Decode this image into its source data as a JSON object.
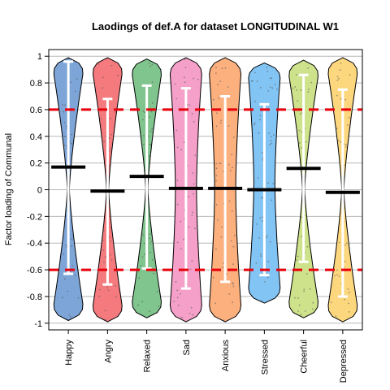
{
  "chart_data": {
    "type": "violin",
    "title": "Laodings of def.A for dataset LONGITUDINAL W1",
    "xlabel": "",
    "ylabel": "Factor loading of Communal",
    "ylim": [
      -1.05,
      1.05
    ],
    "yticks": [
      -1,
      -0.8,
      -0.6,
      -0.4,
      -0.2,
      0,
      0.2,
      0.4,
      0.6,
      0.8,
      1
    ],
    "ytick_labels": [
      "-1",
      "-0.8",
      "-0.6",
      "-0.4",
      "-0.2",
      "0",
      "0.2",
      "0.4",
      "0.6",
      "0.8",
      "1"
    ],
    "grid": true,
    "reference_lines": [
      0.6,
      -0.6
    ],
    "reference_line_color": "#e8000b",
    "categories": [
      "Happy",
      "Angry",
      "Relaxed",
      "Sad",
      "Anxious",
      "Stressed",
      "Cheerful",
      "Depressed"
    ],
    "colors": [
      "#7ea5d8",
      "#f47a7e",
      "#80c48e",
      "#f4a0c8",
      "#fbb07e",
      "#82c4f4",
      "#cde28a",
      "#fdd77e"
    ],
    "series": [
      {
        "name": "Happy",
        "ymin": -0.98,
        "ymax": 0.99,
        "mean": 0.17,
        "ci_low": -0.63,
        "ci_high": 0.96,
        "shape": "hourglass"
      },
      {
        "name": "Angry",
        "ymin": -0.99,
        "ymax": 0.99,
        "mean": -0.01,
        "ci_low": -0.71,
        "ci_high": 0.68,
        "shape": "hourglass"
      },
      {
        "name": "Relaxed",
        "ymin": -0.96,
        "ymax": 0.98,
        "mean": 0.1,
        "ci_low": -0.59,
        "ci_high": 0.78,
        "shape": "hourglass"
      },
      {
        "name": "Sad",
        "ymin": -0.99,
        "ymax": 0.99,
        "mean": 0.01,
        "ci_low": -0.74,
        "ci_high": 0.76,
        "shape": "full"
      },
      {
        "name": "Anxious",
        "ymin": -0.99,
        "ymax": 0.99,
        "mean": 0.01,
        "ci_low": -0.69,
        "ci_high": 0.7,
        "shape": "full"
      },
      {
        "name": "Stressed",
        "ymin": -0.85,
        "ymax": 0.95,
        "mean": 0.0,
        "ci_low": -0.64,
        "ci_high": 0.64,
        "shape": "full"
      },
      {
        "name": "Cheerful",
        "ymin": -0.96,
        "ymax": 0.97,
        "mean": 0.16,
        "ci_low": -0.54,
        "ci_high": 0.86,
        "shape": "hourglass"
      },
      {
        "name": "Depressed",
        "ymin": -0.99,
        "ymax": 0.99,
        "mean": -0.02,
        "ci_low": -0.8,
        "ci_high": 0.75,
        "shape": "hourglass"
      }
    ]
  }
}
